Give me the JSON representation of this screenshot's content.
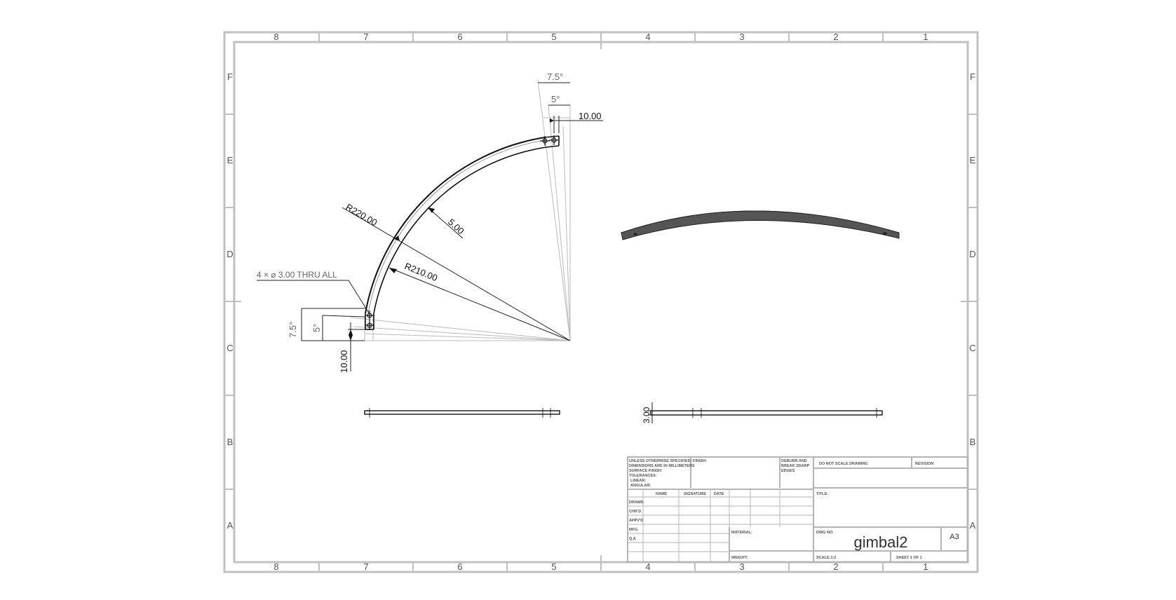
{
  "border": {
    "columns": [
      "8",
      "7",
      "6",
      "5",
      "4",
      "3",
      "2",
      "1"
    ],
    "rows": [
      "F",
      "E",
      "D",
      "C",
      "B",
      "A"
    ]
  },
  "dimensions": {
    "top_angle_outer": "7.5°",
    "top_angle_inner": "5°",
    "top_offset": "10.00",
    "outer_radius": "R220.00",
    "inner_radius": "R210.00",
    "width": "5.00",
    "hole_callout": "4 × ⌀ 3.00 THRU ALL",
    "left_angle_outer": "7.5°",
    "left_angle_inner": "5°",
    "left_offset": "10.00",
    "thickness": "3.00"
  },
  "title_block": {
    "unless_note": [
      "UNLESS OTHERWISE SPECIFIED:",
      "DIMENSIONS ARE IN MILLIMETERS",
      "SURFACE FINISH:",
      "TOLERANCES:",
      "LINEAR:",
      "ANGULAR:"
    ],
    "finish_label": "FINISH:",
    "deburr_note": [
      "DEBURR AND",
      "BREAK SHARP",
      "EDGES"
    ],
    "do_not_scale": "DO NOT SCALE DRAWING",
    "revision_label": "REVISION",
    "col_name": "NAME",
    "col_signature": "SIGNATURE",
    "col_date": "DATE",
    "rows": [
      "DRAWN",
      "CHK'D",
      "APPV'D",
      "MFG",
      "Q.A"
    ],
    "title_label": "TITLE:",
    "material_label": "MATERIAL:",
    "dwg_no_label": "DWG NO.",
    "part_name": "gimbal2",
    "sheet_size": "A3",
    "weight_label": "WEIGHT:",
    "scale_label": "SCALE:1:2",
    "sheet_label": "SHEET 1 OF 1"
  }
}
